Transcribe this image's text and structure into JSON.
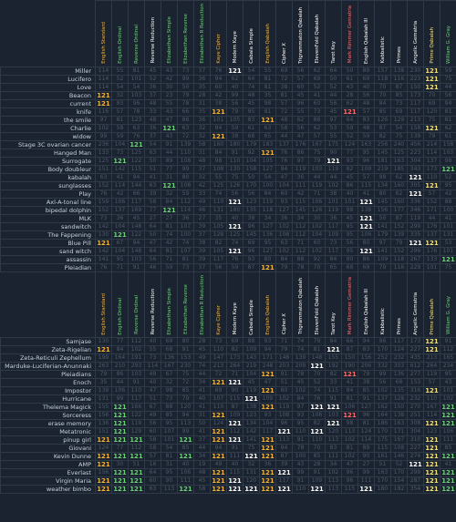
{
  "columns": [
    {
      "name": "English Standard",
      "color": "#f4b43a"
    },
    {
      "name": "English Ordinal",
      "color": "#6fd07a"
    },
    {
      "name": "Reverse Ordinal",
      "color": "#6fd07a"
    },
    {
      "name": "Reverse Reduction",
      "color": "#ffffff"
    },
    {
      "name": "Elizabethan Simple",
      "color": "#6fd07a"
    },
    {
      "name": "Elizabethan Reverse",
      "color": "#6fd07a"
    },
    {
      "name": "Elizabethan R Reduction",
      "color": "#6fd07a"
    },
    {
      "name": "Kaye Cipher",
      "color": "#f4b43a"
    },
    {
      "name": "Modern Kaye",
      "color": "#ffffff"
    },
    {
      "name": "Cabala Simple",
      "color": "#ffffff"
    },
    {
      "name": "English Qabalah",
      "color": "#f4b43a"
    },
    {
      "name": "Cipher X",
      "color": "#ffffff"
    },
    {
      "name": "Trigrammaton Qabalah",
      "color": "#ffffff"
    },
    {
      "name": "ElevenFold Qabalah",
      "color": "#ffffff"
    },
    {
      "name": "Tarot Key",
      "color": "#ffffff"
    },
    {
      "name": "Mark Rimmer Gematria",
      "color": "#ff6b6b"
    },
    {
      "name": "English Qabalah III",
      "color": "#ffffff"
    },
    {
      "name": "Kabbalistic",
      "color": "#ffffff"
    },
    {
      "name": "Primes",
      "color": "#ffffff"
    },
    {
      "name": "Angelic Gematria",
      "color": "#ffffff"
    },
    {
      "name": "Prime Qabalah",
      "color": "#f4e27a"
    },
    {
      "name": "William G. Gray",
      "color": "#6fd07a"
    }
  ],
  "section1": [
    {
      "label": "Miller",
      "values": [
        "114",
        "55",
        "81",
        "45",
        "43",
        "73",
        "37",
        "76",
        "121",
        "54",
        "55",
        "69",
        "56",
        "62",
        "64",
        "50",
        "89",
        "157",
        "138",
        "230",
        "121",
        "59"
      ]
    },
    {
      "label": "Lucifero",
      "values": [
        "114",
        "52",
        "101",
        "52",
        "42",
        "99",
        "36",
        "94",
        "62",
        "64",
        "81",
        "72",
        "57",
        "69",
        "50",
        "61",
        "69",
        "118",
        "116",
        "223",
        "121",
        "75"
      ]
    },
    {
      "label": "Love",
      "values": [
        "114",
        "54",
        "54",
        "36",
        "30",
        "50",
        "35",
        "60",
        "40",
        "74",
        "81",
        "38",
        "60",
        "52",
        "52",
        "43",
        "40",
        "70",
        "87",
        "150",
        "121",
        "44"
      ]
    },
    {
      "label": "Beacon",
      "values": [
        "121",
        "32",
        "103",
        "37",
        "23",
        "79",
        "28",
        "42",
        "99",
        "48",
        "35",
        "81",
        "45",
        "41",
        "44",
        "28",
        "56",
        "70",
        "85",
        "173",
        "70",
        "56"
      ]
    },
    {
      "label": "current",
      "values": [
        "121",
        "93",
        "96",
        "48",
        "55",
        "78",
        "31",
        "38",
        "56",
        "45",
        "98",
        "57",
        "96",
        "60",
        "56",
        "62",
        "48",
        "84",
        "73",
        "117",
        "69",
        "94"
      ]
    },
    {
      "label": "knife",
      "values": [
        "116",
        "57",
        "78",
        "33",
        "43",
        "66",
        "35",
        "121",
        "79",
        "95",
        "81",
        "72",
        "55",
        "73",
        "45",
        "121",
        "57",
        "85",
        "69",
        "117",
        "120",
        "81"
      ]
    },
    {
      "label": "the smile",
      "values": [
        "97",
        "81",
        "123",
        "48",
        "47",
        "86",
        "36",
        "101",
        "105",
        "83",
        "121",
        "48",
        "62",
        "88",
        "97",
        "64",
        "83",
        "126",
        "129",
        "213",
        "75",
        "81"
      ]
    },
    {
      "label": "Charlie",
      "values": [
        "102",
        "58",
        "63",
        "36",
        "121",
        "63",
        "32",
        "94",
        "59",
        "61",
        "63",
        "58",
        "56",
        "62",
        "53",
        "59",
        "48",
        "87",
        "54",
        "158",
        "121",
        "62"
      ]
    },
    {
      "label": "widow",
      "values": [
        "99",
        "59",
        "76",
        "37",
        "43",
        "72",
        "32",
        "121",
        "38",
        "68",
        "65",
        "44",
        "47",
        "57",
        "55",
        "52",
        "59",
        "82",
        "75",
        "139",
        "79",
        "61"
      ]
    },
    {
      "label": "Stage 3C ovarian cancer",
      "values": [
        "236",
        "104",
        "121",
        "54",
        "91",
        "139",
        "58",
        "160",
        "180",
        "179",
        "183",
        "137",
        "176",
        "167",
        "175",
        "124",
        "163",
        "256",
        "240",
        "456",
        "214",
        "158"
      ]
    },
    {
      "label": "Hanged Man",
      "values": [
        "133",
        "73",
        "125",
        "63",
        "44",
        "110",
        "31",
        "84",
        "91",
        "92",
        "121",
        "76",
        "86",
        "75",
        "90",
        "77",
        "95",
        "145",
        "125",
        "223",
        "114",
        "103"
      ]
    },
    {
      "label": "Surrogate",
      "values": [
        "125",
        "121",
        "122",
        "50",
        "89",
        "108",
        "48",
        "98",
        "110",
        "104",
        "105",
        "76",
        "97",
        "79",
        "121",
        "93",
        "96",
        "181",
        "163",
        "304",
        "137",
        "98"
      ]
    },
    {
      "label": "Body doubleur",
      "values": [
        "151",
        "142",
        "115",
        "51",
        "77",
        "99",
        "37",
        "108",
        "130",
        "158",
        "127",
        "94",
        "119",
        "103",
        "119",
        "82",
        "109",
        "219",
        "185",
        "343",
        "173",
        "121"
      ]
    },
    {
      "label": "kabalah",
      "values": [
        "63",
        "41",
        "94",
        "41",
        "31",
        "80",
        "32",
        "55",
        "75",
        "50",
        "54",
        "47",
        "36",
        "44",
        "44",
        "45",
        "57",
        "98",
        "62",
        "121",
        "110",
        "52"
      ]
    },
    {
      "label": "sunglasses",
      "values": [
        "152",
        "114",
        "144",
        "63",
        "121",
        "108",
        "42",
        "125",
        "126",
        "170",
        "100",
        "104",
        "111",
        "119",
        "102",
        "86",
        "115",
        "134",
        "160",
        "305",
        "121",
        "95"
      ]
    },
    {
      "label": "Play",
      "values": [
        "76",
        "42",
        "66",
        "39",
        "32",
        "59",
        "33",
        "74",
        "56",
        "56",
        "84",
        "60",
        "42",
        "71",
        "38",
        "40",
        "41",
        "80",
        "62",
        "121",
        "57",
        "42"
      ]
    },
    {
      "label": "Axl-A-tonal line",
      "values": [
        "159",
        "106",
        "117",
        "58",
        "84",
        "112",
        "49",
        "110",
        "121",
        "123",
        "119",
        "93",
        "115",
        "106",
        "101",
        "101",
        "121",
        "145",
        "160",
        "336",
        "152",
        "88"
      ]
    },
    {
      "label": "bipedal dolphin",
      "values": [
        "152",
        "137",
        "169",
        "77",
        "121",
        "114",
        "46",
        "131",
        "180",
        "135",
        "118",
        "127",
        "145",
        "126",
        "119",
        "98",
        "138",
        "156",
        "177",
        "346",
        "171",
        "100"
      ]
    },
    {
      "label": "MLK",
      "values": [
        "73",
        "36",
        "45",
        "27",
        "27",
        "36",
        "27",
        "35",
        "40",
        "38",
        "34",
        "36",
        "34",
        "30",
        "36",
        "45",
        "121",
        "50",
        "87",
        "119",
        "44",
        "41"
      ]
    },
    {
      "label": "sandwitch",
      "values": [
        "142",
        "104",
        "148",
        "64",
        "81",
        "107",
        "39",
        "105",
        "121",
        "96",
        "127",
        "102",
        "112",
        "102",
        "117",
        "95",
        "121",
        "141",
        "152",
        "299",
        "176",
        "101"
      ]
    },
    {
      "label": "The Fappening",
      "values": [
        "130",
        "121",
        "122",
        "50",
        "74",
        "100",
        "37",
        "128",
        "125",
        "145",
        "136",
        "108",
        "112",
        "104",
        "109",
        "95",
        "106",
        "179",
        "139",
        "335",
        "137",
        "131"
      ]
    },
    {
      "label": "Blue Pill",
      "values": [
        "121",
        "67",
        "94",
        "47",
        "42",
        "74",
        "38",
        "82",
        "74",
        "69",
        "95",
        "63",
        "71",
        "60",
        "73",
        "56",
        "80",
        "97",
        "79",
        "121",
        "121",
        "53"
      ]
    },
    {
      "label": "sand witch",
      "values": [
        "142",
        "104",
        "148",
        "64",
        "81",
        "107",
        "39",
        "105",
        "121",
        "96",
        "127",
        "102",
        "112",
        "102",
        "117",
        "95",
        "121",
        "141",
        "152",
        "299",
        "176",
        "101"
      ]
    },
    {
      "label": "assassin",
      "values": [
        "141",
        "95",
        "103",
        "56",
        "71",
        "81",
        "39",
        "117",
        "76",
        "93",
        "80",
        "84",
        "88",
        "92",
        "84",
        "90",
        "86",
        "109",
        "118",
        "267",
        "133",
        "121"
      ]
    },
    {
      "label": "Pleiadian",
      "values": [
        "76",
        "71",
        "91",
        "46",
        "59",
        "73",
        "37",
        "56",
        "59",
        "87",
        "121",
        "79",
        "78",
        "70",
        "65",
        "68",
        "69",
        "79",
        "116",
        "229",
        "101",
        "75"
      ]
    }
  ],
  "section2": [
    {
      "label": "Samjase",
      "values": [
        "130",
        "77",
        "112",
        "40",
        "69",
        "80",
        "28",
        "73",
        "69",
        "88",
        "93",
        "71",
        "74",
        "79",
        "84",
        "66",
        "94",
        "96",
        "117",
        "173",
        "121",
        "91"
      ]
    },
    {
      "label": "Zeta-Rigelian",
      "values": [
        "121",
        "84",
        "102",
        "55",
        "68",
        "91",
        "45",
        "110",
        "82",
        "109",
        "94",
        "79",
        "74",
        "81",
        "121",
        "87",
        "83",
        "170",
        "124",
        "227",
        "121",
        "112"
      ]
    },
    {
      "label": "Zeta-Reticuli Zephellum",
      "values": [
        "199",
        "164",
        "191",
        "73",
        "136",
        "153",
        "49",
        "147",
        "173",
        "143",
        "171",
        "148",
        "139",
        "148",
        "155",
        "150",
        "156",
        "252",
        "232",
        "435",
        "213",
        "165"
      ]
    },
    {
      "label": "Marduke-Luciferian-Anunnaki",
      "values": [
        "263",
        "210",
        "293",
        "114",
        "167",
        "230",
        "74",
        "213",
        "264",
        "219",
        "248",
        "203",
        "209",
        "121",
        "192",
        "190",
        "206",
        "332",
        "303",
        "612",
        "264",
        "234"
      ]
    },
    {
      "label": "Pleiadians",
      "values": [
        "79",
        "86",
        "103",
        "49",
        "67",
        "75",
        "44",
        "72",
        "71",
        "104",
        "121",
        "91",
        "78",
        "70",
        "82",
        "121",
        "79",
        "99",
        "136",
        "277",
        "119",
        "95"
      ]
    },
    {
      "label": "Enoch",
      "values": [
        "35",
        "44",
        "91",
        "40",
        "32",
        "72",
        "34",
        "121",
        "121",
        "45",
        "47",
        "51",
        "45",
        "52",
        "33",
        "41",
        "38",
        "56",
        "68",
        "153",
        "57",
        "43"
      ]
    },
    {
      "label": "Impostor",
      "values": [
        "139",
        "106",
        "110",
        "47",
        "98",
        "85",
        "41",
        "69",
        "90",
        "119",
        "121",
        "80",
        "102",
        "74",
        "115",
        "94",
        "85",
        "102",
        "135",
        "316",
        "121",
        "101"
      ]
    },
    {
      "label": "Hurricane",
      "values": [
        "131",
        "99",
        "117",
        "51",
        "73",
        "79",
        "40",
        "107",
        "115",
        "121",
        "109",
        "102",
        "84",
        "76",
        "91",
        "81",
        "91",
        "137",
        "128",
        "232",
        "110",
        "102"
      ]
    },
    {
      "label": "Thelema Magick",
      "values": [
        "155",
        "121",
        "166",
        "67",
        "88",
        "120",
        "41",
        "110",
        "87",
        "138",
        "121",
        "119",
        "97",
        "121",
        "121",
        "106",
        "127",
        "162",
        "150",
        "270",
        "167",
        "121"
      ]
    },
    {
      "label": "Sorceress",
      "values": [
        "156",
        "121",
        "122",
        "49",
        "85",
        "94",
        "31",
        "121",
        "109",
        "123",
        "93",
        "108",
        "93",
        "106",
        "103",
        "121",
        "96",
        "164",
        "138",
        "251",
        "114",
        "121"
      ]
    },
    {
      "label": "erase memory",
      "values": [
        "136",
        "121",
        "119",
        "56",
        "95",
        "113",
        "50",
        "124",
        "121",
        "134",
        "104",
        "96",
        "95",
        "82",
        "121",
        "98",
        "81",
        "186",
        "163",
        "308",
        "121",
        "121"
      ]
    },
    {
      "label": "Metatronic",
      "values": [
        "151",
        "121",
        "129",
        "60",
        "107",
        "99",
        "41",
        "121",
        "112",
        "142",
        "117",
        "121",
        "110",
        "121",
        "120",
        "113",
        "124",
        "170",
        "171",
        "304",
        "123",
        "106"
      ]
    },
    {
      "label": "pinup girl",
      "values": [
        "121",
        "121",
        "121",
        "58",
        "101",
        "121",
        "37",
        "121",
        "121",
        "141",
        "121",
        "113",
        "91",
        "110",
        "113",
        "102",
        "114",
        "175",
        "167",
        "310",
        "121",
        "111"
      ]
    },
    {
      "label": "Giovani",
      "values": [
        "124",
        "77",
        "112",
        "58",
        "54",
        "85",
        "44",
        "94",
        "91",
        "75",
        "121",
        "94",
        "78",
        "70",
        "83",
        "81",
        "89",
        "115",
        "108",
        "227",
        "121",
        "85"
      ]
    },
    {
      "label": "Kevin Dunne",
      "values": [
        "121",
        "121",
        "121",
        "57",
        "81",
        "121",
        "34",
        "121",
        "111",
        "121",
        "121",
        "87",
        "100",
        "85",
        "111",
        "102",
        "90",
        "161",
        "146",
        "274",
        "121",
        "121"
      ]
    },
    {
      "label": "AMP",
      "values": [
        "121",
        "30",
        "51",
        "16",
        "31",
        "40",
        "19",
        "49",
        "40",
        "32",
        "36",
        "39",
        "43",
        "28",
        "34",
        "47",
        "27",
        "51",
        "52",
        "121",
        "121",
        "41"
      ]
    },
    {
      "label": "Everlast",
      "values": [
        "156",
        "121",
        "121",
        "64",
        "95",
        "106",
        "48",
        "121",
        "115",
        "131",
        "121",
        "121",
        "99",
        "91",
        "102",
        "96",
        "99",
        "163",
        "170",
        "299",
        "121",
        "121"
      ]
    },
    {
      "label": "Virgin Maria",
      "values": [
        "121",
        "121",
        "121",
        "60",
        "90",
        "111",
        "45",
        "121",
        "121",
        "120",
        "121",
        "117",
        "91",
        "109",
        "113",
        "96",
        "111",
        "170",
        "154",
        "287",
        "121",
        "121"
      ]
    },
    {
      "label": "weather bimbo",
      "values": [
        "121",
        "121",
        "121",
        "63",
        "113",
        "121",
        "58",
        "121",
        "121",
        "121",
        "121",
        "121",
        "110",
        "121",
        "113",
        "115",
        "121",
        "180",
        "182",
        "354",
        "121",
        "121"
      ]
    }
  ],
  "highlight_value": "121"
}
